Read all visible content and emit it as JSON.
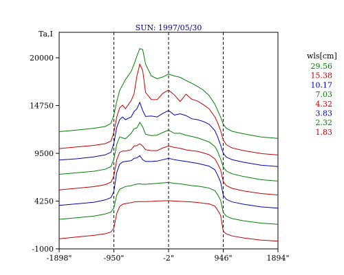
{
  "chart_data": {
    "type": "line",
    "title": "SUN: 1997/05/30",
    "ylabel": "Ta,I",
    "xlabel": "",
    "xlim": [
      -1898,
      1894
    ],
    "ylim": [
      -1000,
      22800
    ],
    "x_ticks": [
      -1898,
      -950,
      -2,
      946,
      1894
    ],
    "x_tick_labels": [
      "-1898\"",
      "-950\"",
      "-2\"",
      "946\"",
      "1894\""
    ],
    "y_ticks": [
      -1000,
      4250,
      9500,
      14750,
      20000
    ],
    "y_tick_labels": [
      "-1000",
      "4250",
      "9500",
      "14750",
      "20000"
    ],
    "vertical_markers": [
      -950,
      -2,
      946
    ],
    "legend_title": "wls[cm]",
    "legend_position": "right",
    "x": [
      -1898,
      -1600,
      -1300,
      -1100,
      -1000,
      -950,
      -900,
      -850,
      -800,
      -750,
      -650,
      -600,
      -550,
      -500,
      -450,
      -400,
      -300,
      -200,
      -100,
      -2,
      100,
      200,
      300,
      400,
      500,
      600,
      700,
      800,
      850,
      900,
      946,
      1000,
      1100,
      1300,
      1600,
      1894
    ],
    "series": [
      {
        "name": "29.56",
        "color": "#008000",
        "values": [
          11880,
          12050,
          12250,
          12450,
          12800,
          13700,
          15200,
          16400,
          17000,
          17600,
          18500,
          19300,
          20200,
          21000,
          20900,
          19300,
          18000,
          17700,
          17900,
          18200,
          18000,
          17850,
          17500,
          17200,
          16850,
          16450,
          15850,
          14900,
          14200,
          13500,
          12700,
          12250,
          11920,
          11650,
          11300,
          11150
        ]
      },
      {
        "name": "15.38",
        "color": "#c00000",
        "values": [
          10020,
          10200,
          10370,
          10560,
          10850,
          11800,
          13500,
          14500,
          14800,
          14400,
          15300,
          16050,
          18000,
          19300,
          18600,
          16200,
          15400,
          15400,
          16100,
          16450,
          15900,
          15200,
          16000,
          15450,
          15250,
          14850,
          14400,
          13500,
          12850,
          12000,
          10950,
          10450,
          10090,
          9800,
          9480,
          9320
        ]
      },
      {
        "name": "10.17",
        "color": "#0000b0",
        "values": [
          8760,
          8900,
          9100,
          9330,
          9620,
          10600,
          12350,
          13200,
          13500,
          13200,
          13500,
          14100,
          14400,
          15100,
          14200,
          13550,
          13600,
          13500,
          13900,
          14200,
          13700,
          13850,
          13650,
          13300,
          13200,
          13000,
          12700,
          12000,
          11300,
          10400,
          9500,
          9080,
          8800,
          8520,
          8200,
          8050
        ]
      },
      {
        "name": "7.03",
        "color": "#008000",
        "values": [
          7200,
          7360,
          7530,
          7750,
          8050,
          8850,
          10500,
          11300,
          11200,
          11100,
          11700,
          12200,
          12300,
          12900,
          12400,
          11600,
          11450,
          11500,
          11800,
          12050,
          11700,
          11700,
          11500,
          11350,
          11200,
          10980,
          10750,
          10250,
          9700,
          8900,
          8000,
          7550,
          7250,
          6950,
          6600,
          6450
        ]
      },
      {
        "name": "4.32",
        "color": "#c00000",
        "values": [
          5480,
          5660,
          5840,
          6060,
          6330,
          7000,
          8800,
          9600,
          9750,
          9750,
          9900,
          10300,
          10350,
          10550,
          10300,
          9900,
          9800,
          9800,
          10100,
          10300,
          10150,
          10050,
          9880,
          9780,
          9720,
          9550,
          9350,
          8900,
          8350,
          7700,
          6400,
          5950,
          5650,
          5360,
          5080,
          4920
        ]
      },
      {
        "name": "3.83",
        "color": "#0000b0",
        "values": [
          3780,
          3950,
          4120,
          4380,
          4630,
          5300,
          7400,
          8300,
          8550,
          8600,
          8700,
          8950,
          9000,
          9250,
          8800,
          8600,
          8600,
          8650,
          8800,
          8950,
          8800,
          8700,
          8600,
          8500,
          8400,
          8250,
          8100,
          7700,
          7100,
          6350,
          4900,
          4450,
          4160,
          3900,
          3620,
          3480
        ]
      },
      {
        "name": "2.32",
        "color": "#008000",
        "values": [
          2250,
          2420,
          2600,
          2830,
          3050,
          3500,
          4900,
          5550,
          5700,
          5850,
          5950,
          6050,
          6120,
          6150,
          6100,
          6100,
          6150,
          6200,
          6250,
          6300,
          6200,
          6150,
          6050,
          5950,
          5900,
          5800,
          5680,
          5400,
          4950,
          4350,
          3000,
          2600,
          2330,
          2080,
          1830,
          1700
        ]
      },
      {
        "name": "1.83",
        "color": "#c00000",
        "values": [
          100,
          300,
          480,
          660,
          850,
          1300,
          2900,
          3650,
          3900,
          3980,
          4080,
          4150,
          4180,
          4200,
          4200,
          4200,
          4220,
          4260,
          4280,
          4300,
          4250,
          4220,
          4200,
          4150,
          4100,
          4020,
          3950,
          3700,
          3250,
          2700,
          950,
          650,
          420,
          200,
          -30,
          -150
        ]
      }
    ]
  }
}
